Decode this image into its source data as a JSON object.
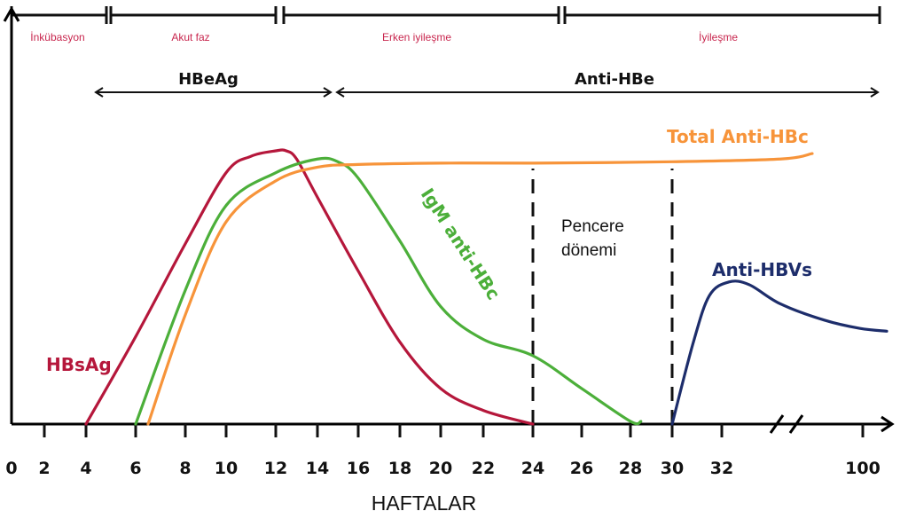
{
  "chart_data": {
    "type": "line",
    "title": "",
    "xlabel": "HAFTALAR",
    "ylabel": "",
    "x_ticks": [
      "0",
      "2",
      "4",
      "6",
      "8",
      "10",
      "12",
      "14",
      "16",
      "18",
      "20",
      "22",
      "24",
      "26",
      "28",
      "30",
      "32",
      "100"
    ],
    "x_axis_break": "between 32 and 100",
    "ylim": [
      0,
      1
    ],
    "grid": false,
    "legend": "none (inline labels)",
    "phases": [
      {
        "label": "İnkübasyon",
        "from": 0,
        "to": 5
      },
      {
        "label": "Akut faz",
        "from": 5,
        "to": 12
      },
      {
        "label": "Erken iyileşme",
        "from": 12,
        "to": 25
      },
      {
        "label": "İyileşme",
        "from": 25,
        "to": 100
      }
    ],
    "markers": [
      {
        "label": "HBeAg",
        "from": 4,
        "to": 14.5
      },
      {
        "label": "Anti-HBe",
        "from": 14.5,
        "to": 100
      }
    ],
    "series": [
      {
        "name": "HBsAg",
        "color": "#b5173b",
        "x": [
          4,
          6,
          8,
          10,
          11,
          12,
          12.5,
          13,
          14,
          16,
          18,
          20,
          22,
          24
        ],
        "y": [
          0,
          0.32,
          0.66,
          0.92,
          0.98,
          1.0,
          1.0,
          0.97,
          0.83,
          0.56,
          0.3,
          0.13,
          0.05,
          0
        ]
      },
      {
        "name": "IgM anti-HBc",
        "color": "#4caf3a",
        "x": [
          6,
          8,
          10,
          12,
          14,
          15,
          16,
          18,
          20,
          22,
          24,
          26,
          28,
          28.5
        ],
        "y": [
          0,
          0.49,
          0.8,
          0.92,
          0.97,
          0.96,
          0.9,
          0.67,
          0.43,
          0.31,
          0.25,
          0.13,
          0.01,
          0.01
        ]
      },
      {
        "name": "Total Anti-HBc",
        "color": "#f7943a",
        "x": [
          6.5,
          8,
          10,
          12,
          14,
          16,
          20,
          24,
          30,
          36,
          80
        ],
        "y": [
          0,
          0.4,
          0.74,
          0.89,
          0.94,
          0.95,
          0.955,
          0.955,
          0.96,
          0.97,
          0.99
        ]
      },
      {
        "name": "Anti-HBVs",
        "color": "#1d2d6b",
        "x": [
          30,
          31,
          32,
          33,
          34,
          36,
          38,
          40,
          100
        ],
        "y": [
          0,
          0.3,
          0.47,
          0.52,
          0.51,
          0.44,
          0.38,
          0.35,
          0.34
        ]
      }
    ],
    "annotations": [
      {
        "text": "Pencere dönemi",
        "between": [
          24,
          30
        ]
      }
    ],
    "vlines_dashed": [
      24,
      30
    ]
  }
}
